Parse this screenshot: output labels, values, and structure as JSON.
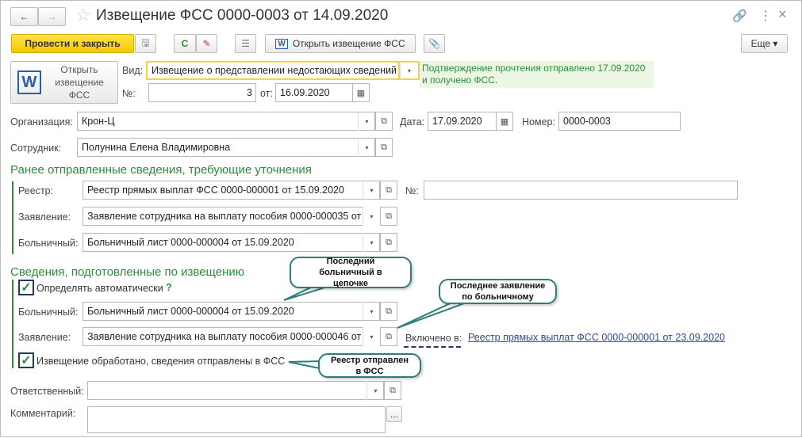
{
  "window": {
    "title": "Извещение ФСС 0000-0003 от 14.09.2020"
  },
  "toolbar": {
    "post_close": "Провести и закрыть",
    "open_fss": "Открыть извещение ФСС",
    "more": "Еще"
  },
  "open_big": {
    "label": "Открыть извещение ФСС"
  },
  "header": {
    "vid_label": "Вид:",
    "vid_value": "Извещение о представлении недостающих сведений",
    "note": "Подтверждение прочтения отправлено 17.09.2020 и получено ФСС.",
    "num_label": "№:",
    "num_value": "3",
    "from_label": "от:",
    "from_value": "16.09.2020",
    "org_label": "Организация:",
    "org_value": "Крон-Ц",
    "date_label": "Дата:",
    "date_value": "17.09.2020",
    "number_label": "Номер:",
    "number_value": "0000-0003",
    "employee_label": "Сотрудник:",
    "employee_value": "Полунина Елена Владимировна"
  },
  "section1": {
    "title": "Ранее отправленные сведения, требующие уточнения",
    "registry_label": "Реестр:",
    "registry_value": "Реестр прямых выплат ФСС 0000-000001 от 15.09.2020",
    "no_label": "№:",
    "no_value": "",
    "application_label": "Заявление:",
    "application_value": "Заявление сотрудника на выплату пособия 0000-000035 от 1",
    "sick_label": "Больничный:",
    "sick_value": "Больничный лист 0000-000004 от 15.09.2020"
  },
  "section2": {
    "title": "Сведения, подготовленные по извещению",
    "auto_label": "Определять автоматически",
    "auto_checked": true,
    "help": "?",
    "sick_label": "Больничный:",
    "sick_value": "Больничный лист 0000-000004 от 15.09.2020",
    "application_label": "Заявление:",
    "application_value": "Заявление сотрудника на выплату пособия 0000-000046 от 1",
    "included_label": "Включено в:",
    "included_link": "Реестр прямых выплат ФСС 0000-000001 от 23.09.2020",
    "processed_label": "Извещение обработано, сведения отправлены в ФСС",
    "processed_checked": true
  },
  "footer": {
    "responsible_label": "Ответственный:",
    "responsible_value": "",
    "comment_label": "Комментарий:",
    "comment_value": "",
    "ellipsis": "..."
  },
  "callouts": [
    "Последний больничный в цепочке",
    "Последнее заявление по больничному",
    "Реестр отправлен в ФСС"
  ]
}
